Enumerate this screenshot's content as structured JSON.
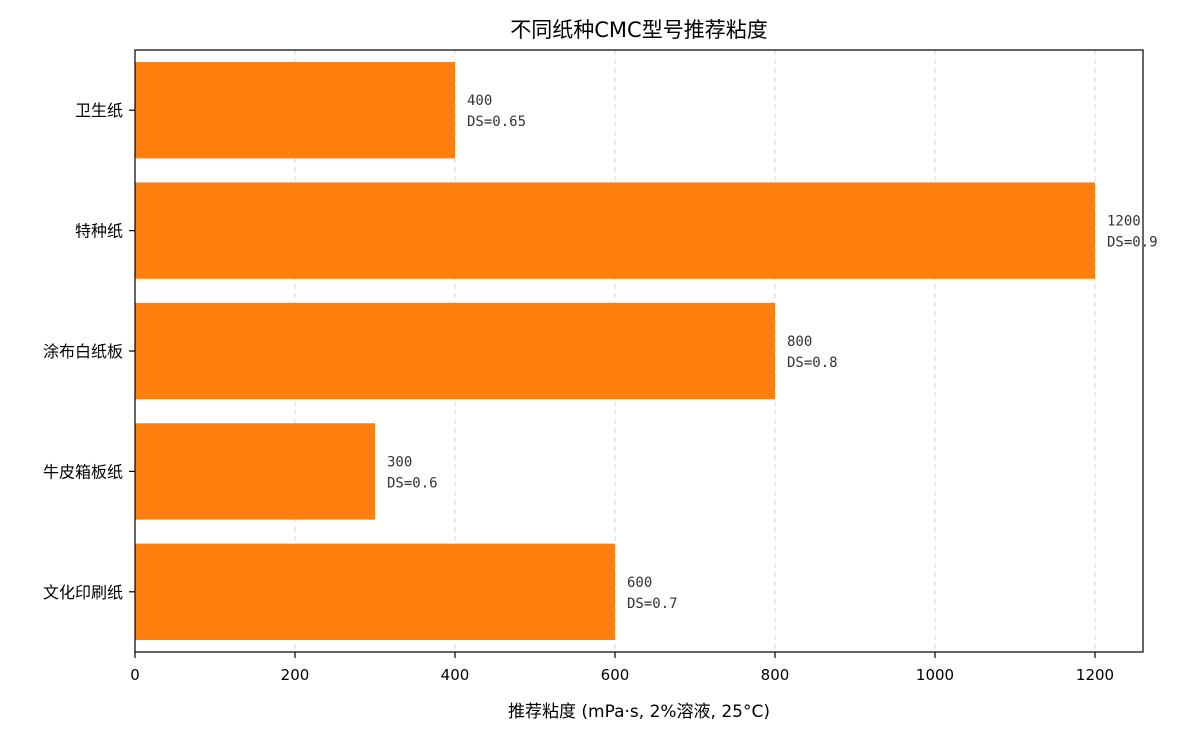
{
  "chart_data": {
    "type": "bar",
    "orientation": "horizontal",
    "title": "不同纸种CMC型号推荐粘度",
    "xlabel": "推荐粘度 (mPa·s, 2%溶液, 25°C)",
    "ylabel": "",
    "categories": [
      "文化印刷纸",
      "牛皮箱板纸",
      "涂布白纸板",
      "特种纸",
      "卫生纸"
    ],
    "values": [
      600,
      300,
      800,
      1200,
      400
    ],
    "ds_values": [
      "DS=0.7",
      "DS=0.6",
      "DS=0.8",
      "DS=0.9",
      "DS=0.65"
    ],
    "value_labels": [
      "600",
      "300",
      "800",
      "1200",
      "400"
    ],
    "xlim": [
      0,
      1260
    ],
    "xticks": [
      0,
      200,
      400,
      600,
      800,
      1000,
      1200
    ],
    "xtick_labels": [
      "0",
      "200",
      "400",
      "600",
      "800",
      "1000",
      "1200"
    ],
    "grid": "x-dashed",
    "legend": "none",
    "bar_color": "#ff7f0e"
  }
}
